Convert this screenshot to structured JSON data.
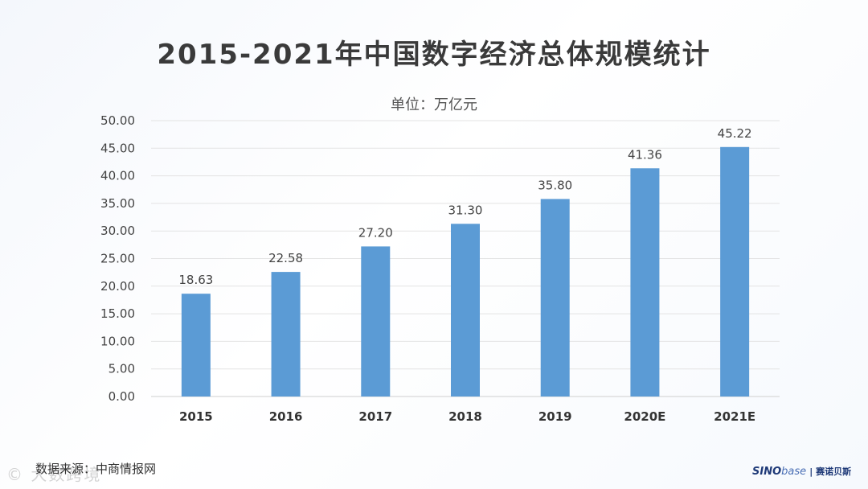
{
  "chart_data": {
    "type": "bar",
    "title": "2015-2021年中国数字经济总体规模统计",
    "unit_label": "单位：万亿元",
    "categories": [
      "2015",
      "2016",
      "2017",
      "2018",
      "2019",
      "2020E",
      "2021E"
    ],
    "values": [
      18.63,
      22.58,
      27.2,
      31.3,
      35.8,
      41.36,
      45.22
    ],
    "value_labels": [
      "18.63",
      "22.58",
      "27.20",
      "31.30",
      "35.80",
      "41.36",
      "45.22"
    ],
    "ylim": [
      0,
      50
    ],
    "yticks": [
      "0.00",
      "5.00",
      "10.00",
      "15.00",
      "20.00",
      "25.00",
      "30.00",
      "35.00",
      "40.00",
      "45.00",
      "50.00"
    ],
    "grid": true,
    "bar_color": "#5b9bd5"
  },
  "footer": {
    "source": "数据来源：中商情报网",
    "watermark": "© 大数跨境",
    "logo_a": "SINO",
    "logo_b": "base",
    "logo_c": "| 赛诺贝斯"
  }
}
